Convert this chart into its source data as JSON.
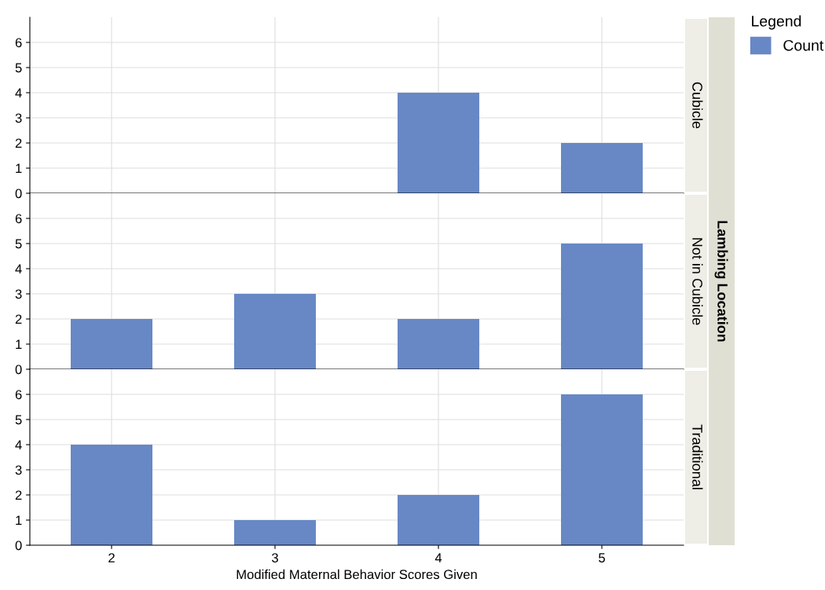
{
  "chart_data": [
    {
      "type": "bar",
      "annotations": [
        "Cubicle",
        "Lambing Location"
      ],
      "x": [
        4,
        5
      ],
      "series": [
        {
          "name": "Count",
          "color": "#6788c5",
          "values": [
            4,
            2
          ]
        }
      ],
      "legend_title": "Legend",
      "legend": "right",
      "xlim": [
        1.5,
        5.5
      ],
      "xticks": [
        2,
        3,
        4,
        5
      ],
      "ylim": [
        0,
        7
      ],
      "yticks": [
        0,
        1,
        2,
        3,
        4,
        5,
        6
      ],
      "grid": true,
      "tick_labels": "y"
    },
    {
      "type": "bar",
      "annotations": [
        "Not in Cubicle"
      ],
      "x": [
        2,
        3,
        4,
        5
      ],
      "series": [
        {
          "color": "#6788c5",
          "values": [
            2,
            3,
            2,
            5
          ]
        }
      ],
      "xlim": [
        1.5,
        5.5
      ],
      "xticks": [
        2,
        3,
        4,
        5
      ],
      "ylim": [
        0,
        7
      ],
      "yticks": [
        0,
        1,
        2,
        3,
        4,
        5,
        6
      ],
      "grid": true,
      "tick_labels": "y"
    },
    {
      "type": "bar",
      "annotations": [
        "Traditional"
      ],
      "xlabel": "Modified Maternal Behavior Scores Given",
      "x": [
        2,
        3,
        4,
        5
      ],
      "series": [
        {
          "color": "#6788c5",
          "values": [
            4,
            1,
            2,
            6
          ]
        }
      ],
      "xlim": [
        1.5,
        5.5
      ],
      "xticks": [
        2,
        3,
        4,
        5
      ],
      "ylim": [
        0,
        7
      ],
      "yticks": [
        0,
        1,
        2,
        3,
        4,
        5,
        6
      ],
      "grid": true
    }
  ]
}
